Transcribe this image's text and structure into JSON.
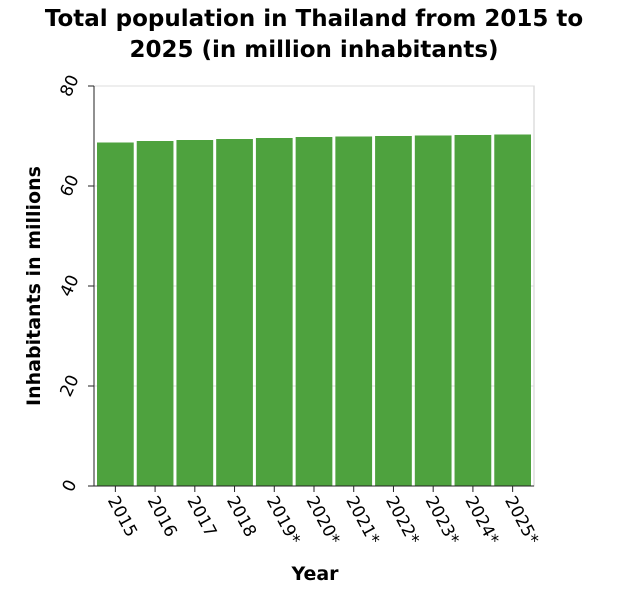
{
  "chart_data": {
    "type": "bar",
    "title_line1": "Total population in Thailand from 2015 to",
    "title_line2": "2025 (in million inhabitants)",
    "xlabel": "Year",
    "ylabel": "Inhabitants in millions",
    "categories": [
      "2015",
      "2016",
      "2017",
      "2018",
      "2019*",
      "2020*",
      "2021*",
      "2022*",
      "2023*",
      "2024*",
      "2025*"
    ],
    "values": [
      68.7,
      69.0,
      69.2,
      69.4,
      69.6,
      69.8,
      69.9,
      70.0,
      70.1,
      70.2,
      70.3
    ],
    "ylim": [
      0,
      80
    ],
    "yticks": [
      0,
      20,
      40,
      60,
      80
    ],
    "grid": true,
    "bar_color": "#4ea23e"
  }
}
